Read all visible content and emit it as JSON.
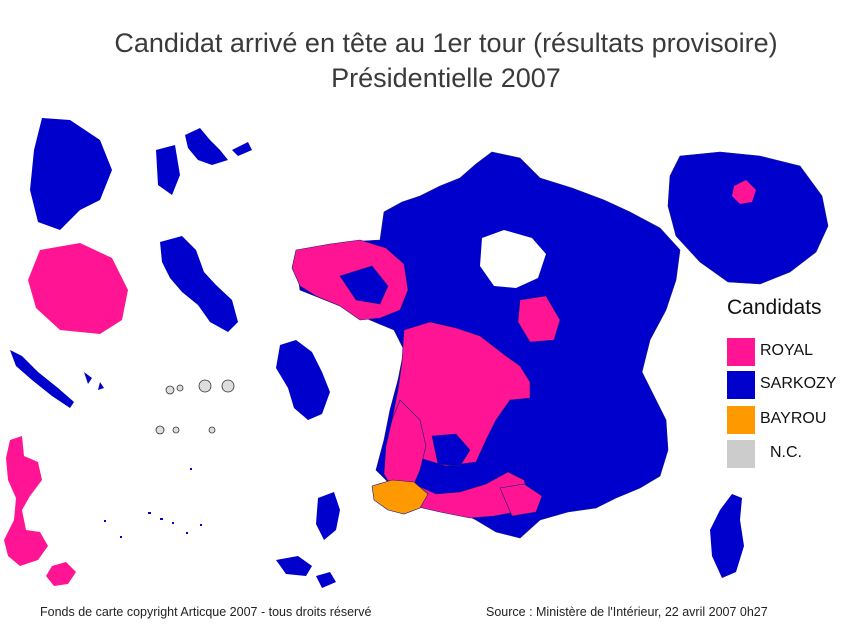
{
  "title": {
    "line1": "Candidat arrivé en tête au 1er tour (résultats provisoire)",
    "line2": "Présidentielle 2007"
  },
  "colors": {
    "royal": "#ff1493",
    "sarkozy": "#0000cd",
    "bayrou": "#ff9900",
    "nc": "#cccccc",
    "border": "#1a1a80"
  },
  "legend": {
    "title": "Candidats",
    "items": [
      {
        "label": "ROYAL",
        "color": "#ff1493"
      },
      {
        "label": "SARKOZY",
        "color": "#0000cd"
      },
      {
        "label": "BAYROU",
        "color": "#ff9900"
      },
      {
        "label": "N.C.",
        "color": "#cccccc"
      }
    ]
  },
  "footer": {
    "left": "Fonds de carte copyright Articque 2007 - tous droits réservé",
    "right": "Source : Ministère de l'Intérieur, 22 avril 2007 0h27"
  }
}
